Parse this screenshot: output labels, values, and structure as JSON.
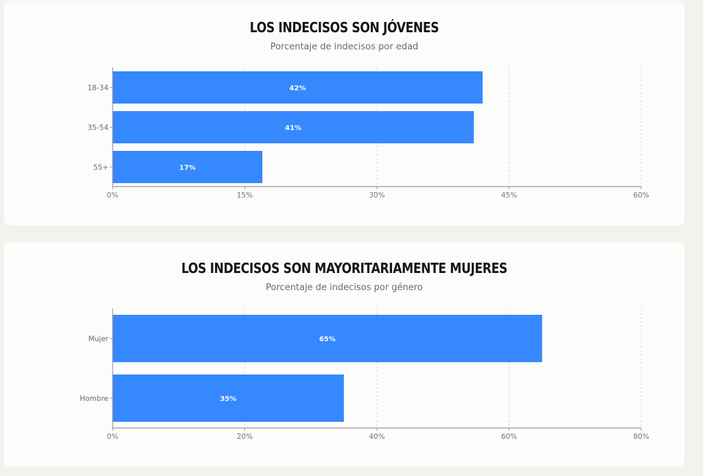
{
  "accent": "#3688ff",
  "chart_data": [
    {
      "type": "bar",
      "orientation": "horizontal",
      "title": "LOS INDECISOS SON JÓVENES",
      "subtitle": "Porcentaje de indecisos por edad",
      "categories": [
        "18-34",
        "35-54",
        "55+"
      ],
      "values": [
        42,
        41,
        17
      ],
      "value_labels": [
        "42%",
        "41%",
        "17%"
      ],
      "xlim": [
        0,
        60
      ],
      "xticks": [
        "0%",
        "15%",
        "30%",
        "45%",
        "60%"
      ],
      "grid": true
    },
    {
      "type": "bar",
      "orientation": "horizontal",
      "title": "LOS INDECISOS SON MAYORITARIAMENTE MUJERES",
      "subtitle": "Porcentaje de indecisos por género",
      "categories": [
        "Mujer",
        "Hombre"
      ],
      "values": [
        65,
        35
      ],
      "value_labels": [
        "65%",
        "35%"
      ],
      "xlim": [
        0,
        80
      ],
      "xticks": [
        "0%",
        "20%",
        "40%",
        "60%",
        "80%"
      ],
      "grid": true
    }
  ]
}
